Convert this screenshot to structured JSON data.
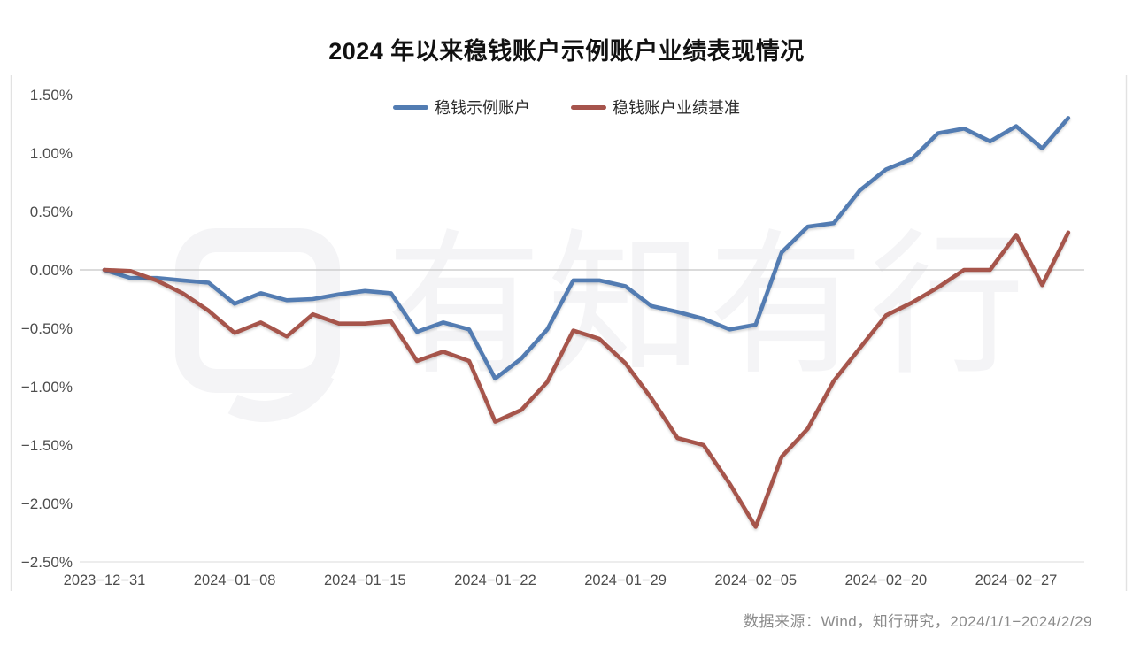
{
  "title": "2024 年以来稳钱账户示例账户业绩表现情况",
  "legend": [
    {
      "id": "example-account",
      "label": "稳钱示例账户",
      "color": "#527CB2"
    },
    {
      "id": "benchmark",
      "label": "稳钱账户业绩基准",
      "color": "#A6544C"
    }
  ],
  "source_note": "数据来源：Wind，知行研究，2024/1/1−2024/2/29",
  "watermark": {
    "text": "有知有行"
  },
  "chart_data": {
    "type": "line",
    "unit": "percent",
    "title": "2024 年以来稳钱账户示例账户业绩表现情况",
    "xlabel": "",
    "ylabel": "",
    "ylim": [
      -2.5,
      1.5
    ],
    "grid": "horizontal line at 0.00% and bottom axis line only",
    "legend_position": "top-center",
    "x": [
      "2023-12-31",
      "2024-01-02",
      "2024-01-03",
      "2024-01-04",
      "2024-01-05",
      "2024-01-08",
      "2024-01-09",
      "2024-01-10",
      "2024-01-11",
      "2024-01-12",
      "2024-01-15",
      "2024-01-16",
      "2024-01-17",
      "2024-01-18",
      "2024-01-19",
      "2024-01-22",
      "2024-01-23",
      "2024-01-24",
      "2024-01-25",
      "2024-01-26",
      "2024-01-29",
      "2024-01-30",
      "2024-01-31",
      "2024-02-01",
      "2024-02-02",
      "2024-02-05",
      "2024-02-06",
      "2024-02-07",
      "2024-02-08",
      "2024-02-19",
      "2024-02-20",
      "2024-02-21",
      "2024-02-22",
      "2024-02-23",
      "2024-02-26",
      "2024-02-27",
      "2024-02-28",
      "2024-02-29"
    ],
    "x_ticks": [
      {
        "label": "2023−12−31",
        "index": 0
      },
      {
        "label": "2024−01−08",
        "index": 5
      },
      {
        "label": "2024−01−15",
        "index": 10
      },
      {
        "label": "2024−01−22",
        "index": 15
      },
      {
        "label": "2024−01−29",
        "index": 20
      },
      {
        "label": "2024−02−05",
        "index": 25
      },
      {
        "label": "2024−02−20",
        "index": 30
      },
      {
        "label": "2024−02−27",
        "index": 35
      }
    ],
    "y_ticks": [
      {
        "label": "1.50%",
        "value": 1.5
      },
      {
        "label": "1.00%",
        "value": 1.0
      },
      {
        "label": "0.50%",
        "value": 0.5
      },
      {
        "label": "0.00%",
        "value": 0.0
      },
      {
        "label": "−0.50%",
        "value": -0.5
      },
      {
        "label": "−1.00%",
        "value": -1.0
      },
      {
        "label": "−1.50%",
        "value": -1.5
      },
      {
        "label": "−2.00%",
        "value": -2.0
      },
      {
        "label": "−2.50%",
        "value": -2.5
      }
    ],
    "series": [
      {
        "id": "example-account",
        "name": "稳钱示例账户",
        "color": "#527CB2",
        "values": [
          0.0,
          -0.07,
          -0.07,
          -0.09,
          -0.11,
          -0.29,
          -0.2,
          -0.26,
          -0.25,
          -0.21,
          -0.18,
          -0.2,
          -0.53,
          -0.45,
          -0.51,
          -0.93,
          -0.76,
          -0.51,
          -0.09,
          -0.09,
          -0.14,
          -0.31,
          -0.36,
          -0.42,
          -0.51,
          -0.47,
          0.15,
          0.37,
          0.4,
          0.68,
          0.86,
          0.95,
          1.17,
          1.21,
          1.1,
          1.23,
          1.04,
          1.3
        ]
      },
      {
        "id": "benchmark",
        "name": "稳钱账户业绩基准",
        "color": "#A6544C",
        "values": [
          0.0,
          -0.01,
          -0.09,
          -0.2,
          -0.35,
          -0.54,
          -0.45,
          -0.57,
          -0.38,
          -0.46,
          -0.46,
          -0.44,
          -0.78,
          -0.7,
          -0.78,
          -1.3,
          -1.2,
          -0.96,
          -0.52,
          -0.59,
          -0.8,
          -1.1,
          -1.44,
          -1.5,
          -1.83,
          -2.2,
          -1.6,
          -1.36,
          -0.95,
          -0.67,
          -0.39,
          -0.28,
          -0.15,
          0.0,
          0.0,
          0.3,
          -0.13,
          0.32
        ]
      }
    ]
  },
  "style": {
    "zero_line_color": "#cfcfcf",
    "axis_line_color": "#e2e2e2",
    "border_color": "#e2e2e2",
    "tick_label_color": "#4d4d4d",
    "background": "#ffffff"
  }
}
